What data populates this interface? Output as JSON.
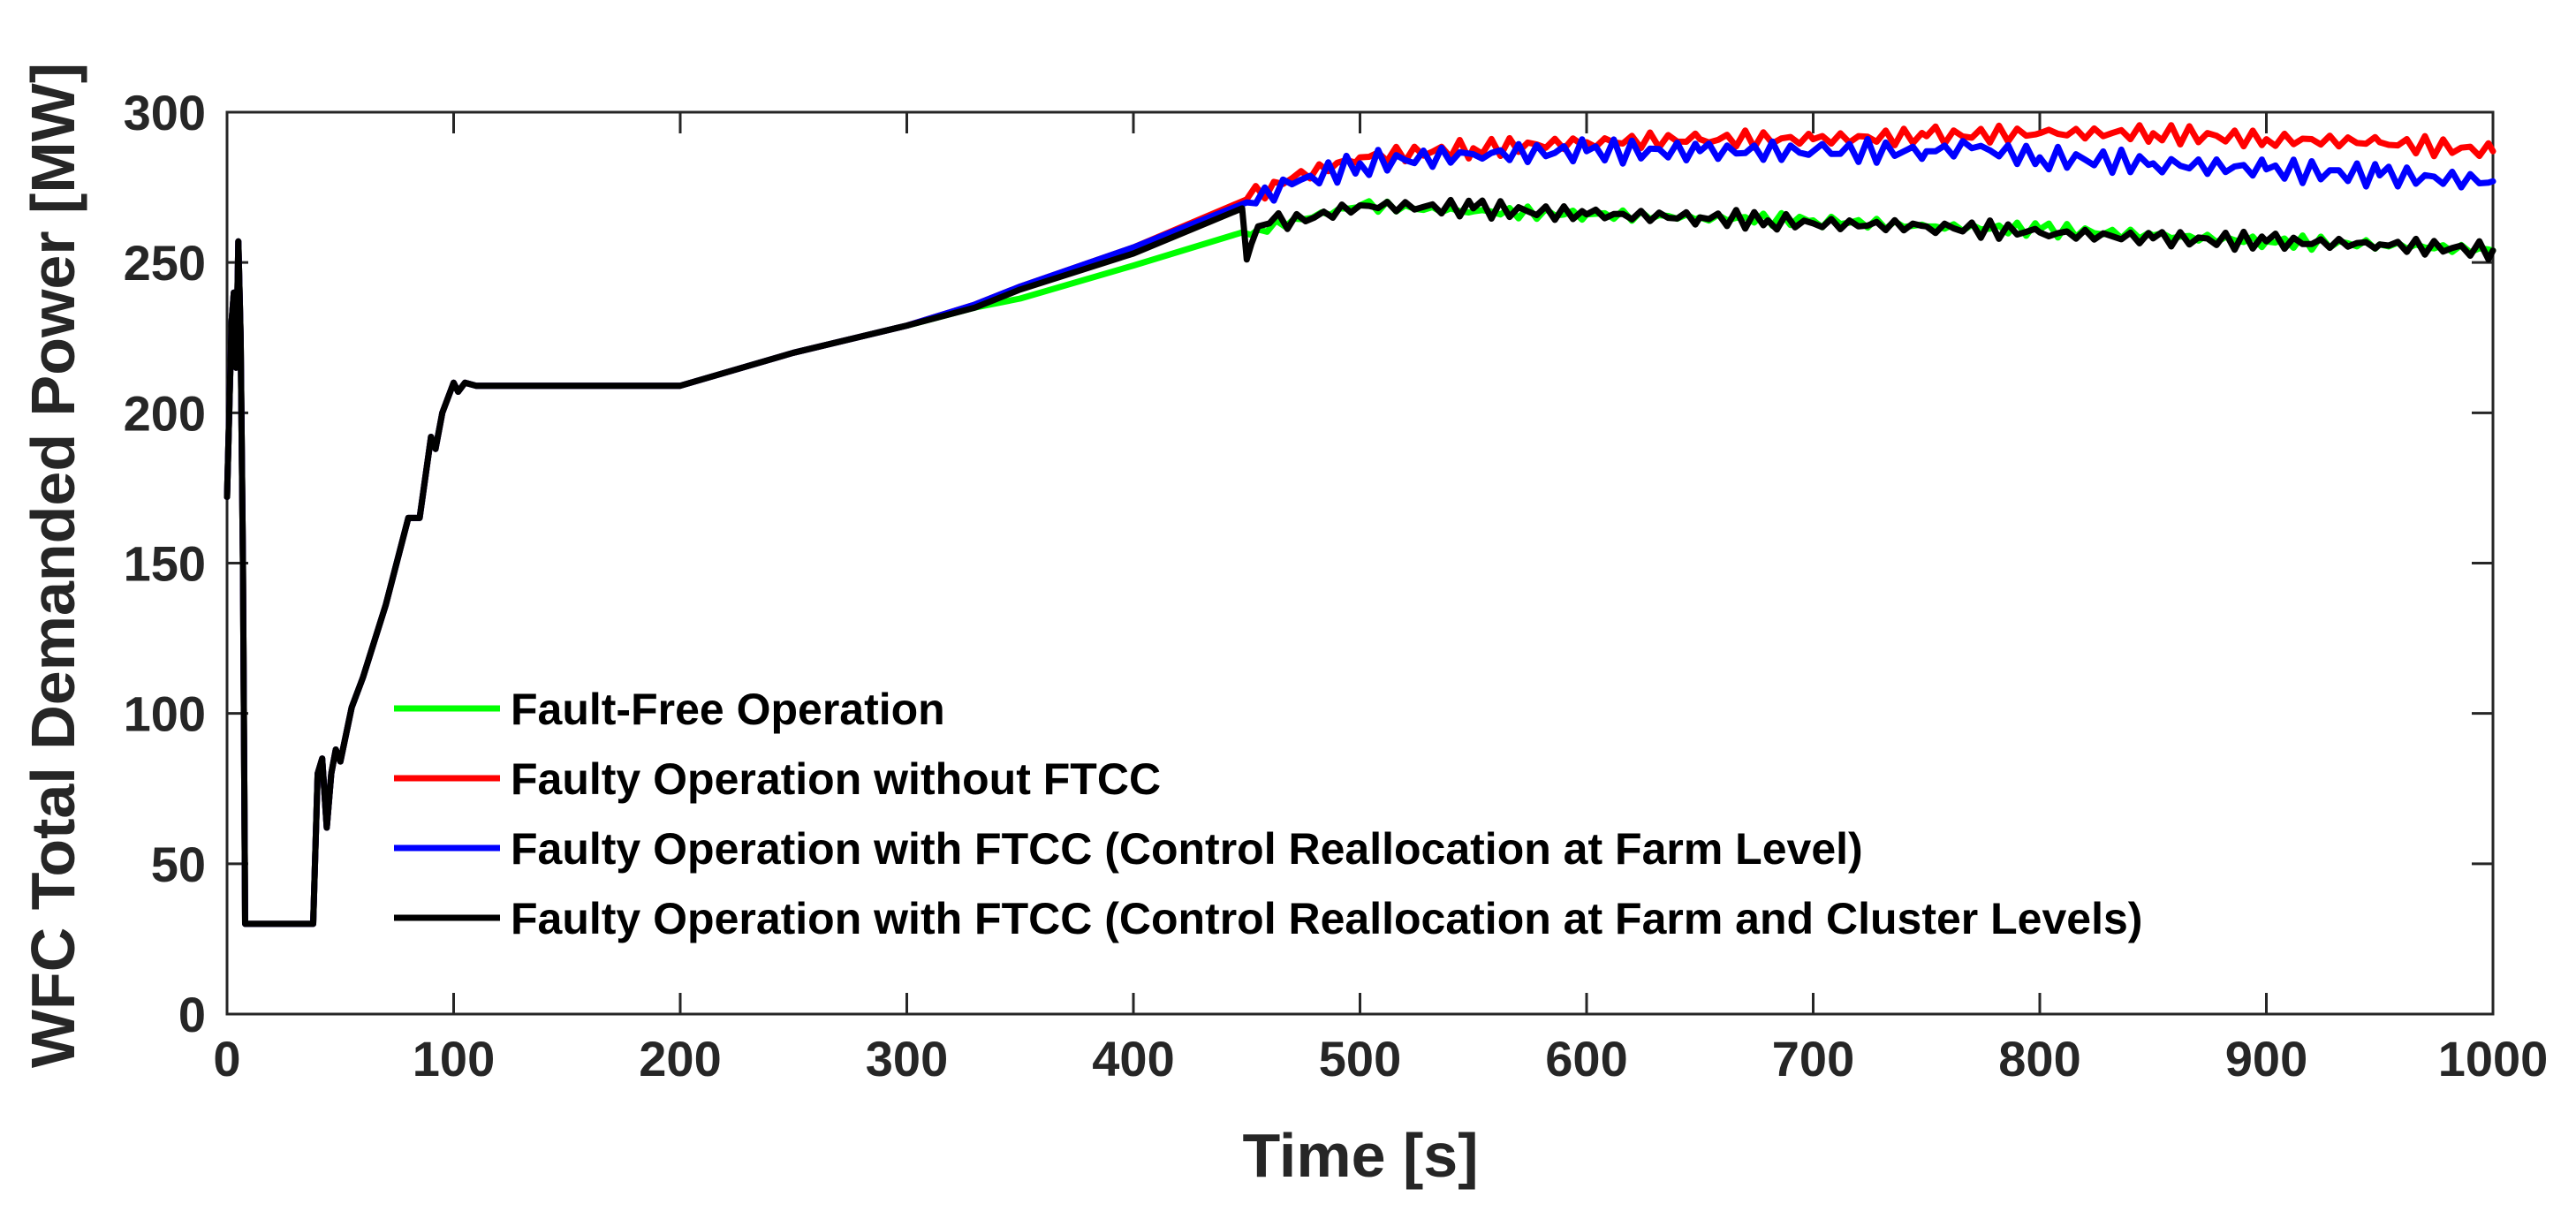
{
  "chart_data": {
    "type": "line",
    "title": "",
    "xlabel": "Time [s]",
    "ylabel": "WFC Total Demanded Power [MW]",
    "xlim": [
      0,
      1000
    ],
    "ylim": [
      0,
      300
    ],
    "xticks": [
      0,
      100,
      200,
      300,
      400,
      500,
      600,
      700,
      800,
      900,
      1000
    ],
    "yticks": [
      0,
      50,
      100,
      150,
      200,
      250,
      300
    ],
    "grid": false,
    "legend_position": "bottom-left",
    "series": [
      {
        "name": "Fault-Free Operation",
        "color": "#00ff00",
        "x": [
          0,
          2,
          3,
          4,
          5,
          6,
          7,
          8,
          9,
          10,
          38,
          40,
          42,
          44,
          46,
          48,
          50,
          55,
          60,
          70,
          80,
          85,
          90,
          92,
          95,
          100,
          102,
          105,
          110,
          150,
          200,
          250,
          300,
          330,
          350,
          400,
          448,
          455,
          500,
          550,
          600,
          650,
          700,
          750,
          800,
          850,
          900,
          950,
          1000
        ],
        "y": [
          172,
          230,
          240,
          215,
          257,
          225,
          150,
          30,
          30,
          30,
          30,
          80,
          85,
          62,
          80,
          88,
          84,
          102,
          112,
          136,
          165,
          165,
          192,
          188,
          200,
          210,
          207,
          210,
          209,
          209,
          209,
          220,
          229,
          235,
          238,
          249,
          260,
          261,
          269,
          267,
          266,
          265,
          264,
          262,
          261,
          259,
          257,
          256,
          254
        ]
      },
      {
        "name": "Faulty Operation without FTCC",
        "color": "#ff0000",
        "x": [
          0,
          2,
          3,
          4,
          5,
          6,
          7,
          8,
          9,
          10,
          38,
          40,
          42,
          44,
          46,
          48,
          50,
          55,
          60,
          70,
          80,
          85,
          90,
          92,
          95,
          100,
          102,
          105,
          110,
          150,
          200,
          250,
          300,
          330,
          350,
          400,
          450,
          470,
          500,
          550,
          600,
          650,
          700,
          750,
          800,
          850,
          900,
          950,
          1000
        ],
        "y": [
          172,
          230,
          240,
          215,
          257,
          225,
          150,
          30,
          30,
          30,
          30,
          80,
          85,
          62,
          80,
          88,
          84,
          102,
          112,
          136,
          165,
          165,
          192,
          188,
          200,
          210,
          207,
          210,
          209,
          209,
          209,
          220,
          229,
          236,
          242,
          255,
          271,
          278,
          285,
          288,
          290,
          291,
          291,
          292,
          293,
          293,
          291,
          290,
          287
        ]
      },
      {
        "name": "Faulty Operation with FTCC (Control Reallocation at Farm Level)",
        "color": "#0000ff",
        "x": [
          0,
          2,
          3,
          4,
          5,
          6,
          7,
          8,
          9,
          10,
          38,
          40,
          42,
          44,
          46,
          48,
          50,
          55,
          60,
          70,
          80,
          85,
          90,
          92,
          95,
          100,
          102,
          105,
          110,
          150,
          200,
          250,
          300,
          330,
          350,
          400,
          450,
          470,
          500,
          550,
          600,
          650,
          700,
          750,
          770,
          800,
          850,
          900,
          950,
          1000
        ],
        "y": [
          172,
          230,
          240,
          215,
          257,
          225,
          150,
          30,
          30,
          30,
          30,
          80,
          85,
          62,
          80,
          88,
          84,
          102,
          112,
          136,
          165,
          165,
          192,
          188,
          200,
          210,
          207,
          210,
          209,
          209,
          209,
          220,
          229,
          236,
          242,
          255,
          270,
          276,
          283,
          286,
          287,
          287,
          287,
          287,
          288,
          285,
          283,
          281,
          279,
          277
        ]
      },
      {
        "name": "Faulty Operation with FTCC (Control Reallocation at Farm and Cluster Levels)",
        "color": "#000000",
        "x": [
          0,
          2,
          3,
          4,
          5,
          6,
          7,
          8,
          9,
          10,
          38,
          40,
          42,
          44,
          46,
          48,
          50,
          55,
          60,
          70,
          80,
          85,
          90,
          92,
          95,
          100,
          102,
          105,
          110,
          150,
          200,
          250,
          300,
          330,
          350,
          400,
          448,
          450,
          452,
          455,
          460,
          480,
          500,
          550,
          600,
          650,
          680,
          700,
          750,
          800,
          850,
          900,
          950,
          1000
        ],
        "y": [
          172,
          230,
          240,
          215,
          257,
          225,
          150,
          30,
          30,
          30,
          30,
          80,
          85,
          62,
          80,
          88,
          84,
          102,
          112,
          136,
          165,
          165,
          192,
          188,
          200,
          210,
          207,
          210,
          209,
          209,
          209,
          220,
          229,
          235,
          241,
          253,
          268,
          251,
          256,
          262,
          263,
          265,
          269,
          268,
          266,
          265,
          264,
          263,
          262,
          260,
          258,
          257,
          256,
          254
        ]
      }
    ]
  }
}
